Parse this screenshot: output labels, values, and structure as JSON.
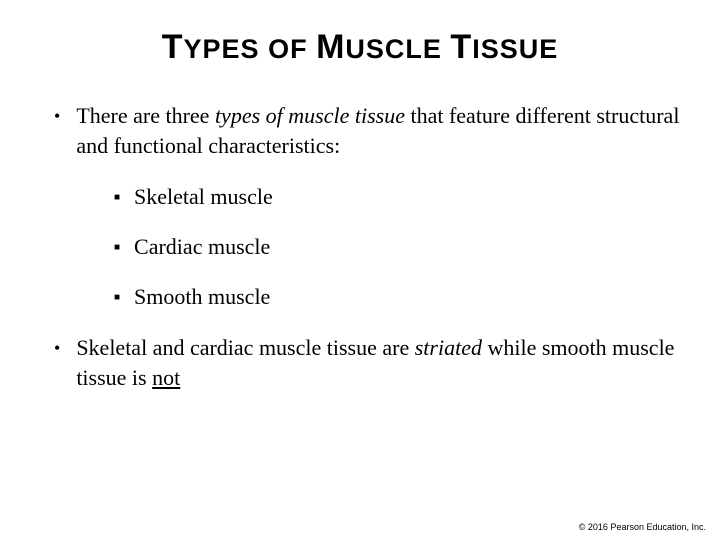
{
  "title": {
    "parts": [
      {
        "text": "T",
        "big": true
      },
      {
        "text": "YPES OF ",
        "big": false
      },
      {
        "text": "M",
        "big": true
      },
      {
        "text": "USCLE ",
        "big": false
      },
      {
        "text": "T",
        "big": true
      },
      {
        "text": "ISSUE",
        "big": false
      }
    ],
    "fontsize_big": 34,
    "fontsize_small": 27,
    "color": "#000000"
  },
  "bullets": [
    {
      "level": 1,
      "runs": [
        {
          "text": "There are three ",
          "style": "normal"
        },
        {
          "text": "types of muscle tissue",
          "style": "italic"
        },
        {
          "text": " that feature different structural and functional characteristics:",
          "style": "normal"
        }
      ]
    },
    {
      "level": 2,
      "runs": [
        {
          "text": "Skeletal muscle",
          "style": "normal"
        }
      ]
    },
    {
      "level": 2,
      "runs": [
        {
          "text": "Cardiac muscle",
          "style": "normal"
        }
      ]
    },
    {
      "level": 2,
      "runs": [
        {
          "text": "Smooth muscle",
          "style": "normal"
        }
      ]
    },
    {
      "level": 1,
      "runs": [
        {
          "text": "Skeletal and cardiac muscle tissue are ",
          "style": "normal"
        },
        {
          "text": "striated",
          "style": "italic"
        },
        {
          "text": " while smooth muscle tissue is ",
          "style": "normal"
        },
        {
          "text": "not",
          "style": "underline"
        }
      ]
    }
  ],
  "copyright": "© 2016 Pearson Education, Inc.",
  "style": {
    "background": "#ffffff",
    "text_color": "#000000",
    "body_fontsize": 22,
    "bullet_l1_marker": "•",
    "bullet_l2_marker": "■",
    "font_family_title": "Arial",
    "font_family_body": "Times New Roman"
  }
}
